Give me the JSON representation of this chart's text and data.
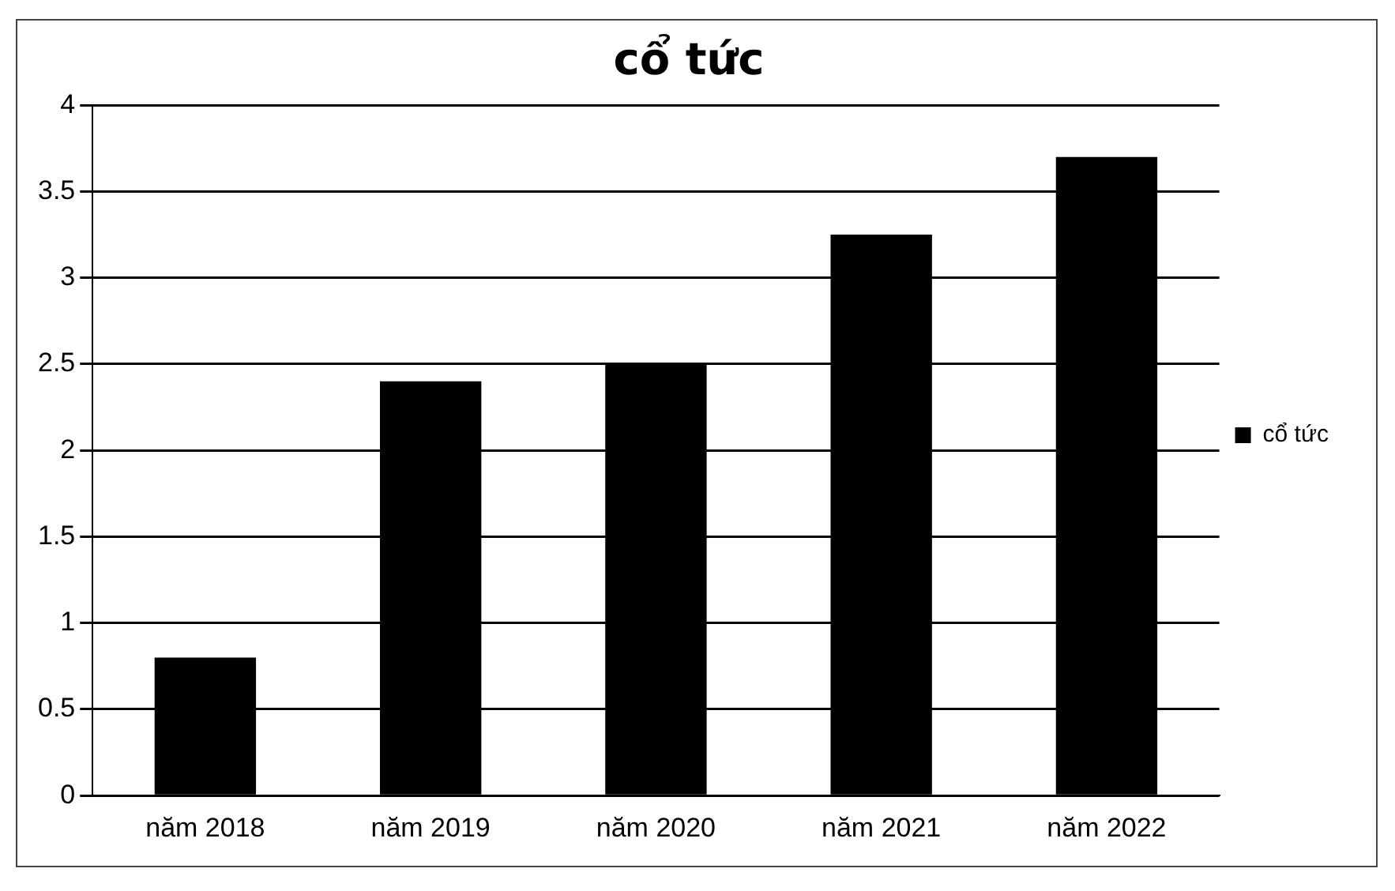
{
  "chart_data": {
    "type": "bar",
    "title": "cổ tức",
    "categories": [
      "năm 2018",
      "năm 2019",
      "năm 2020",
      "năm 2021",
      "năm 2022"
    ],
    "series": [
      {
        "name": "cổ tức",
        "color": "#000000",
        "values": [
          0.8,
          2.4,
          2.5,
          3.25,
          3.7
        ]
      }
    ],
    "ylim": [
      0,
      4
    ],
    "yticks": [
      0,
      0.5,
      1,
      1.5,
      2,
      2.5,
      3,
      3.5,
      4
    ],
    "grid": "y",
    "legend": "right"
  }
}
